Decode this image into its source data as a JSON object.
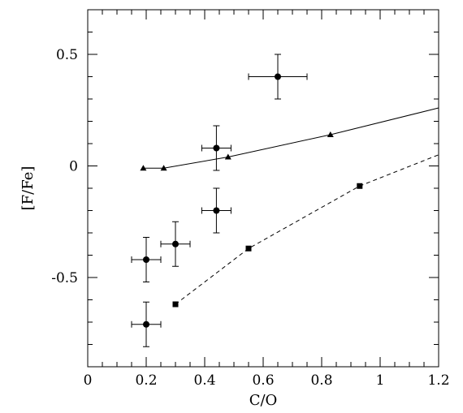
{
  "chart_data": {
    "type": "scatter",
    "title": "",
    "xlabel": "C/O",
    "ylabel": "[F/Fe]",
    "xlim": [
      0,
      1.2
    ],
    "ylim": [
      -0.9,
      0.7
    ],
    "grid": false,
    "x_ticks": [
      0,
      0.2,
      0.4,
      0.6,
      0.8,
      1,
      1.2
    ],
    "x_tick_labels": [
      "0",
      "0.2",
      "0.4",
      "0.6",
      "0.8",
      "1",
      "1.2"
    ],
    "y_ticks": [
      0.5,
      0,
      -0.5
    ],
    "y_tick_labels": [
      "0.5",
      "0",
      "-0.5"
    ],
    "series": [
      {
        "style": "points-errorbars",
        "marker": "circle",
        "points": [
          {
            "x": 0.65,
            "y": 0.4,
            "xerr": 0.1,
            "yerr": 0.1
          },
          {
            "x": 0.44,
            "y": 0.08,
            "xerr": 0.05,
            "yerr": 0.1
          },
          {
            "x": 0.44,
            "y": -0.2,
            "xerr": 0.05,
            "yerr": 0.1
          },
          {
            "x": 0.3,
            "y": -0.35,
            "xerr": 0.05,
            "yerr": 0.1
          },
          {
            "x": 0.2,
            "y": -0.42,
            "xerr": 0.05,
            "yerr": 0.1
          },
          {
            "x": 0.2,
            "y": -0.71,
            "xerr": 0.05,
            "yerr": 0.1
          }
        ]
      },
      {
        "style": "solid-line",
        "marker": "triangle",
        "x": [
          0.19,
          0.26,
          0.48,
          0.83,
          1.2
        ],
        "y": [
          -0.01,
          -0.01,
          0.04,
          0.14,
          0.26
        ],
        "marker_x": [
          0.19,
          0.26,
          0.48,
          0.83
        ],
        "marker_y": [
          -0.01,
          -0.01,
          0.04,
          0.14
        ]
      },
      {
        "style": "dashed-line",
        "marker": "square",
        "x": [
          0.3,
          0.55,
          0.93,
          1.2
        ],
        "y": [
          -0.62,
          -0.37,
          -0.09,
          0.05
        ],
        "marker_x": [
          0.3,
          0.55,
          0.93
        ],
        "marker_y": [
          -0.62,
          -0.37,
          -0.09
        ]
      }
    ]
  }
}
